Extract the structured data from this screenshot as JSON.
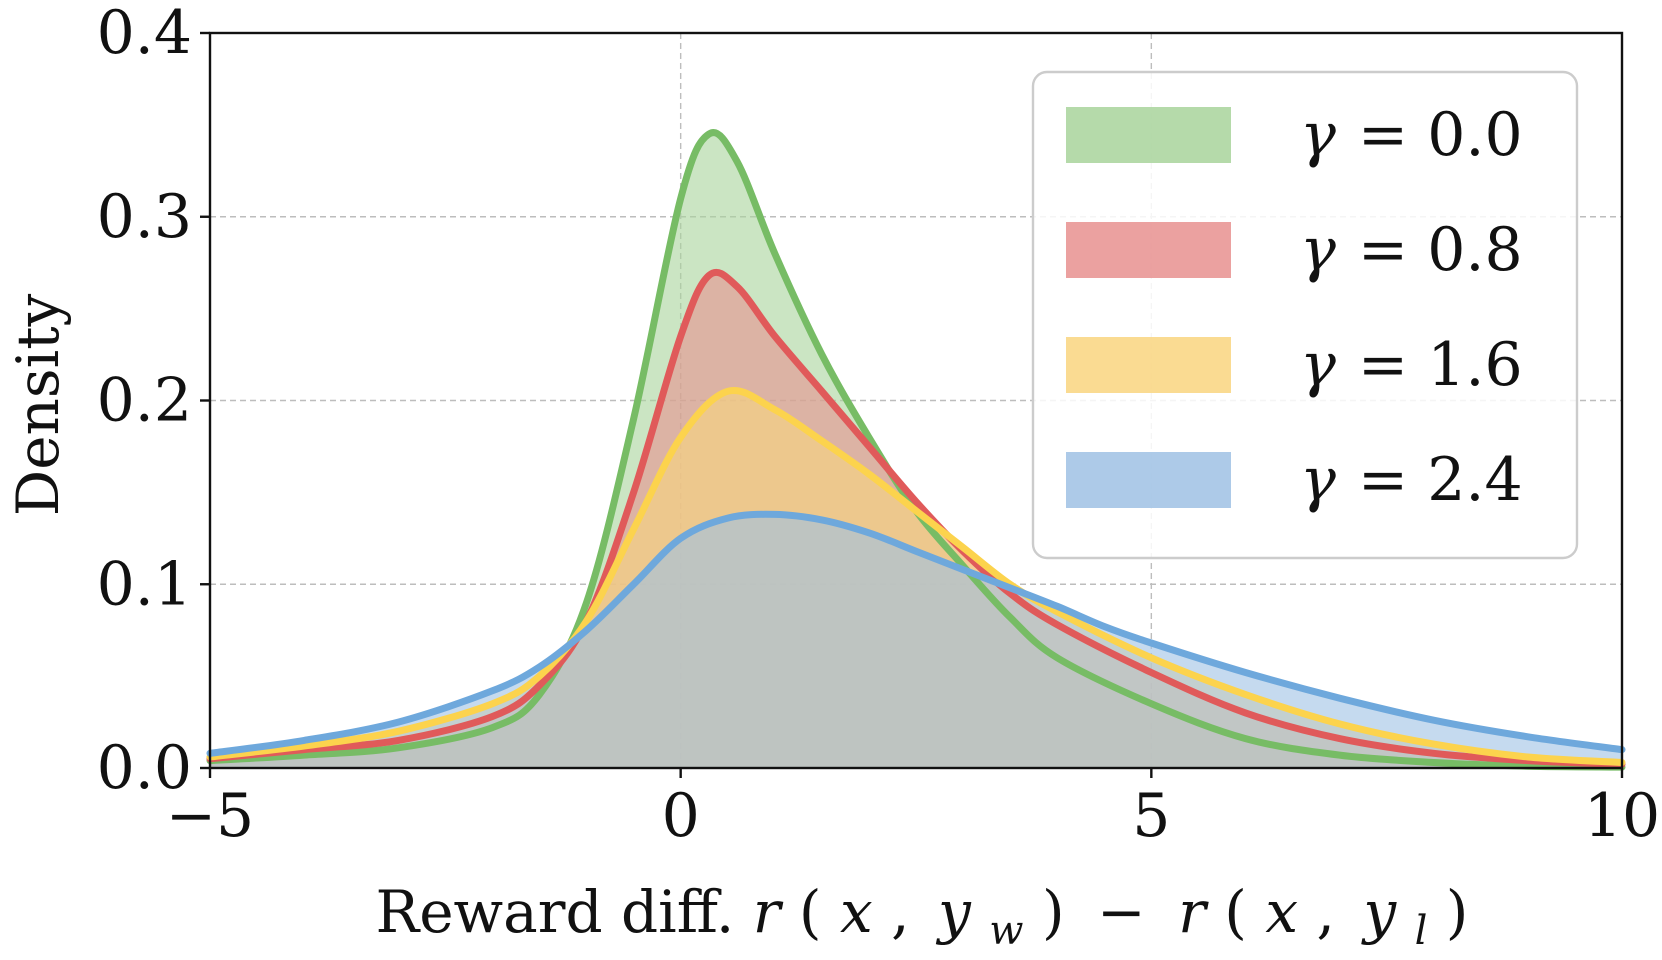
{
  "chart_data": {
    "type": "area",
    "title": "",
    "xlabel": "Reward diff. r(x, y_w) − r(x, y_l)",
    "xlabel_parts": {
      "prefix": "Reward diff. ",
      "r1": "r",
      "x1": "x",
      "y1": "y",
      "y1_sub": "w",
      "minus": "−",
      "r2": "r",
      "x2": "x",
      "y2": "y",
      "y2_sub": "l",
      "open": "(",
      "comma": ",",
      "close": ")"
    },
    "ylabel": "Density",
    "xlim": [
      -5,
      10
    ],
    "ylim": [
      0,
      0.4
    ],
    "xticks": [
      -5,
      0,
      5,
      10
    ],
    "xtick_labels": [
      "−5",
      "0",
      "5",
      "10"
    ],
    "yticks": [
      0.0,
      0.1,
      0.2,
      0.3,
      0.4
    ],
    "ytick_labels": [
      "0.0",
      "0.1",
      "0.2",
      "0.3",
      "0.4"
    ],
    "grid": true,
    "legend_position": "top-right",
    "series": [
      {
        "name": "γ = 0.0",
        "symbol": "γ",
        "value_label": "= 0.0",
        "color": "#77bc65",
        "fill": "#a8d49b",
        "x": [
          -5,
          -4,
          -3,
          -2,
          -1.5,
          -1,
          -0.5,
          0,
          0.3,
          0.6,
          1,
          1.5,
          2,
          2.5,
          3,
          3.5,
          4,
          5,
          6,
          7,
          8,
          9,
          10
        ],
        "y": [
          0.004,
          0.007,
          0.011,
          0.022,
          0.04,
          0.09,
          0.19,
          0.31,
          0.345,
          0.33,
          0.28,
          0.225,
          0.18,
          0.14,
          0.11,
          0.082,
          0.06,
          0.035,
          0.016,
          0.007,
          0.003,
          0.001,
          0.0005
        ]
      },
      {
        "name": "γ = 0.8",
        "symbol": "γ",
        "value_label": "= 0.8",
        "color": "#e05a5a",
        "fill": "#e8918f",
        "x": [
          -5,
          -4,
          -3,
          -2,
          -1.5,
          -1,
          -0.5,
          0,
          0.3,
          0.6,
          1,
          1.5,
          2,
          2.5,
          3,
          3.5,
          4,
          5,
          6,
          7,
          8,
          9,
          10
        ],
        "y": [
          0.005,
          0.01,
          0.015,
          0.028,
          0.045,
          0.08,
          0.15,
          0.235,
          0.268,
          0.262,
          0.235,
          0.205,
          0.175,
          0.145,
          0.118,
          0.095,
          0.078,
          0.052,
          0.03,
          0.016,
          0.008,
          0.004,
          0.002
        ]
      },
      {
        "name": "γ = 1.6",
        "symbol": "γ",
        "value_label": "= 1.6",
        "color": "#fcd34d",
        "fill": "#f9d57f",
        "x": [
          -5,
          -4,
          -3,
          -2,
          -1.5,
          -1,
          -0.5,
          0,
          0.5,
          1,
          1.5,
          2,
          2.5,
          3,
          3.5,
          4,
          5,
          6,
          7,
          8,
          9,
          10
        ],
        "y": [
          0.006,
          0.012,
          0.02,
          0.035,
          0.05,
          0.08,
          0.13,
          0.18,
          0.205,
          0.195,
          0.178,
          0.16,
          0.14,
          0.12,
          0.1,
          0.085,
          0.06,
          0.04,
          0.024,
          0.013,
          0.006,
          0.003
        ]
      },
      {
        "name": "γ = 2.4",
        "symbol": "γ",
        "value_label": "= 2.4",
        "color": "#6ea8dc",
        "fill": "#9fc1e4",
        "x": [
          -5,
          -4,
          -3,
          -2,
          -1.5,
          -1,
          -0.5,
          0,
          0.5,
          1,
          1.5,
          2,
          2.5,
          3,
          3.5,
          4,
          4.5,
          5,
          6,
          7,
          8,
          9,
          10
        ],
        "y": [
          0.008,
          0.015,
          0.025,
          0.042,
          0.055,
          0.075,
          0.1,
          0.125,
          0.136,
          0.138,
          0.135,
          0.128,
          0.118,
          0.108,
          0.098,
          0.088,
          0.077,
          0.068,
          0.052,
          0.038,
          0.026,
          0.017,
          0.01
        ]
      }
    ]
  }
}
